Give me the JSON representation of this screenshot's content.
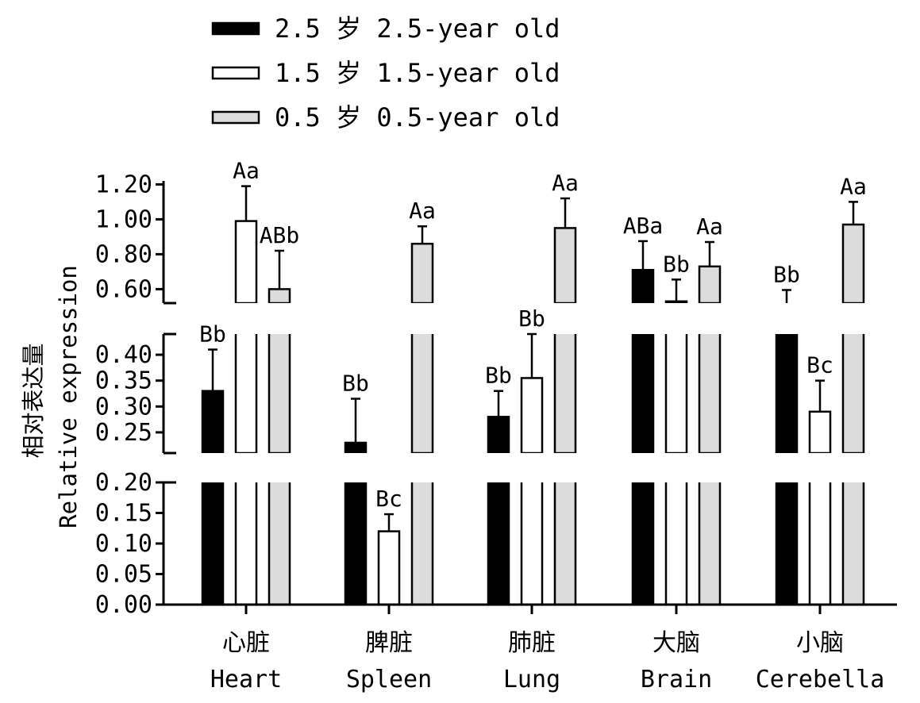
{
  "chart_data": {
    "type": "bar",
    "categories": [
      {
        "cn": "心脏",
        "en": "Heart"
      },
      {
        "cn": "脾脏",
        "en": "Spleen"
      },
      {
        "cn": "肺脏",
        "en": "Lung"
      },
      {
        "cn": "大脑",
        "en": "Brain"
      },
      {
        "cn": "小脑",
        "en": "Cerebella"
      }
    ],
    "series": [
      {
        "name": "2.5 岁 2.5-year old",
        "color": "#000000",
        "values": [
          0.33,
          0.23,
          0.28,
          0.71,
          0.52
        ],
        "errors": [
          0.08,
          0.085,
          0.05,
          0.165,
          0.075
        ],
        "labels": [
          "Bb",
          "Bb",
          "Bb",
          "ABa",
          "Bb"
        ]
      },
      {
        "name": "1.5 岁 1.5-year old",
        "color": "#ffffff",
        "values": [
          0.99,
          0.12,
          0.355,
          0.53,
          0.29
        ],
        "errors": [
          0.2,
          0.028,
          0.085,
          0.125,
          0.06
        ],
        "labels": [
          "Aa",
          "Bc",
          "Bb",
          "Bb",
          "Bc"
        ]
      },
      {
        "name": "0.5 岁 0.5-year old",
        "color": "#dcdcdc",
        "values": [
          0.6,
          0.86,
          0.95,
          0.73,
          0.97
        ],
        "errors": [
          0.22,
          0.1,
          0.17,
          0.14,
          0.13
        ],
        "labels": [
          "ABb",
          "Aa",
          "Aa",
          "Aa",
          "Aa"
        ]
      }
    ],
    "ylabel_cn": "相对表达量",
    "ylabel_en": "Relative expression",
    "broken_axis": true,
    "segments": [
      {
        "range": [
          0.0,
          0.2
        ],
        "ticks": [
          "0.00",
          "0.05",
          "0.10",
          "0.15",
          "0.20"
        ]
      },
      {
        "range": [
          0.21,
          0.44
        ],
        "ticks": [
          "0.25",
          "0.30",
          "0.35",
          "0.40"
        ]
      },
      {
        "range": [
          0.52,
          1.22
        ],
        "ticks": [
          "0.60",
          "0.80",
          "1.00",
          "1.20"
        ]
      }
    ],
    "legend_position": "top-left",
    "grid": false
  }
}
